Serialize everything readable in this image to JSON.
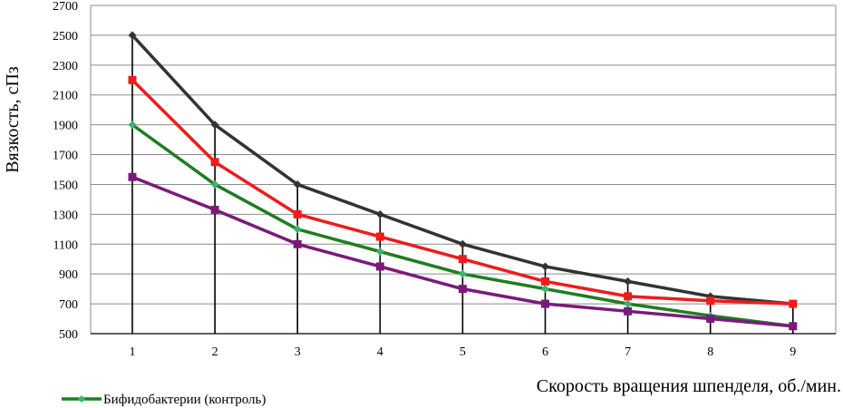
{
  "chart_data": {
    "type": "line",
    "title": "",
    "xlabel": "Скорость вращения шпенделя, об./мин.",
    "ylabel": "Вязкость, сПз",
    "x": [
      1,
      2,
      3,
      4,
      5,
      6,
      7,
      8,
      9
    ],
    "x_ticks": [
      "1",
      "2",
      "3",
      "4",
      "5",
      "6",
      "7",
      "8",
      "9"
    ],
    "y_ticks": [
      "500",
      "700",
      "900",
      "1100",
      "1300",
      "1500",
      "1700",
      "1900",
      "2100",
      "2300",
      "2500",
      "2700"
    ],
    "ylim": [
      500,
      2700
    ],
    "grid": "horizontal",
    "drop_lines": true,
    "legend": {
      "position": "bottom-left"
    },
    "series": [
      {
        "color": "#333333",
        "marker": "diamond",
        "values": [
          2500,
          1900,
          1500,
          1300,
          1100,
          950,
          850,
          750,
          700
        ]
      },
      {
        "color": "#ee1c1c",
        "marker": "square",
        "values": [
          2200,
          1650,
          1300,
          1150,
          1000,
          850,
          750,
          720,
          700
        ]
      },
      {
        "name": "Бифидобактерии (контроль)",
        "color": "#1e7e1e",
        "marker": "diamond",
        "values": [
          1900,
          1500,
          1200,
          1050,
          900,
          800,
          700,
          620,
          550
        ]
      },
      {
        "color": "#7b1a7b",
        "marker": "square",
        "values": [
          1550,
          1330,
          1100,
          950,
          800,
          700,
          650,
          600,
          550
        ]
      }
    ]
  }
}
